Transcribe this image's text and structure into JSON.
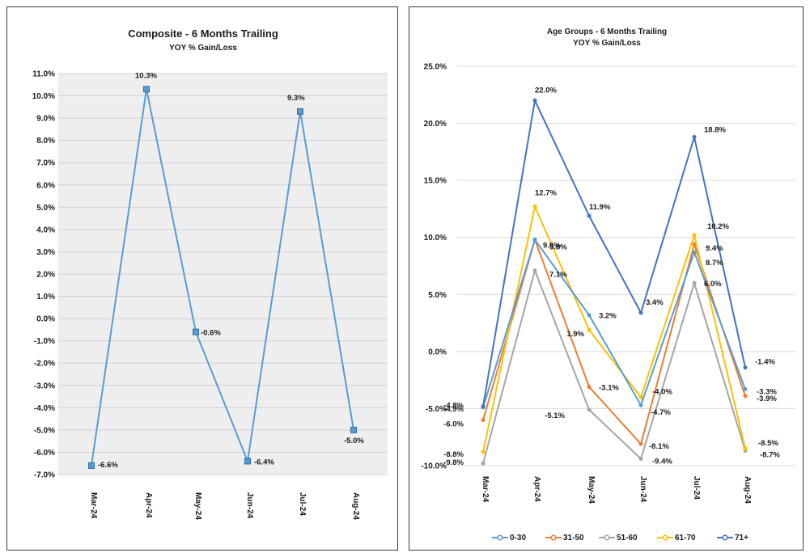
{
  "chart_data": [
    {
      "type": "line",
      "title": "Composite - 6 Months Trailing",
      "subtitle": "YOY % Gain/Loss",
      "categories": [
        "Mar-24",
        "Apr-24",
        "May-24",
        "Jun-24",
        "Jul-24",
        "Aug-24"
      ],
      "ylim": [
        -7.0,
        11.0
      ],
      "ystep": 1.0,
      "grid": true,
      "plot_background": "#eeeeee",
      "series": [
        {
          "color": "#5b9bd5",
          "values": [
            -6.6,
            10.3,
            -0.6,
            -6.4,
            9.3,
            -5.0
          ],
          "labels": [
            "-6.6%",
            "10.3%",
            "-0.6%",
            "-6.4%",
            "9.3%",
            "-5.0%"
          ]
        }
      ]
    },
    {
      "type": "line",
      "title": "Age Groups - 6 Months Trailing",
      "subtitle": "YOY % Gain/Loss",
      "categories": [
        "Mar-24",
        "Apr-24",
        "May-24",
        "Jun-24",
        "Jul-24",
        "Aug-24"
      ],
      "ylim": [
        -10.0,
        25.0
      ],
      "ystep": 5.0,
      "grid": true,
      "legend": "bottom",
      "series": [
        {
          "name": "0-30",
          "color": "#5b9bd5",
          "values": [
            -4.9,
            9.8,
            3.2,
            -4.7,
            8.7,
            -3.3
          ],
          "labels": [
            "-4.9%",
            "9.8%",
            "3.2%",
            "-4.7%",
            "8.7%",
            "-3.3%"
          ]
        },
        {
          "name": "31-50",
          "color": "#ed7d31",
          "values": [
            -6.0,
            9.8,
            -3.1,
            -8.1,
            9.4,
            -3.9
          ],
          "labels": [
            "-6.0%",
            "9.8%",
            "-3.1%",
            "-8.1%",
            "9.4%",
            "-3.9%"
          ]
        },
        {
          "name": "51-60",
          "color": "#a5a5a5",
          "values": [
            -9.8,
            7.1,
            -5.1,
            -9.4,
            6.0,
            -8.7
          ],
          "labels": [
            "-9.8%",
            "7.1%",
            "-5.1%",
            "-9.4%",
            "6.0%",
            "-8.7%"
          ]
        },
        {
          "name": "61-70",
          "color": "#ffc000",
          "values": [
            -8.8,
            12.7,
            1.9,
            -4.0,
            10.2,
            -8.5
          ],
          "labels": [
            "-8.8%",
            "12.7%",
            "1.9%",
            "-4.0%",
            "10.2%",
            "-8.5%"
          ]
        },
        {
          "name": "71+",
          "color": "#4472c4",
          "values": [
            -4.8,
            22.0,
            11.9,
            3.4,
            18.8,
            -1.4
          ],
          "labels": [
            "-4.8%",
            "22.0%",
            "11.9%",
            "3.4%",
            "18.8%",
            "-1.4%"
          ]
        }
      ]
    }
  ]
}
